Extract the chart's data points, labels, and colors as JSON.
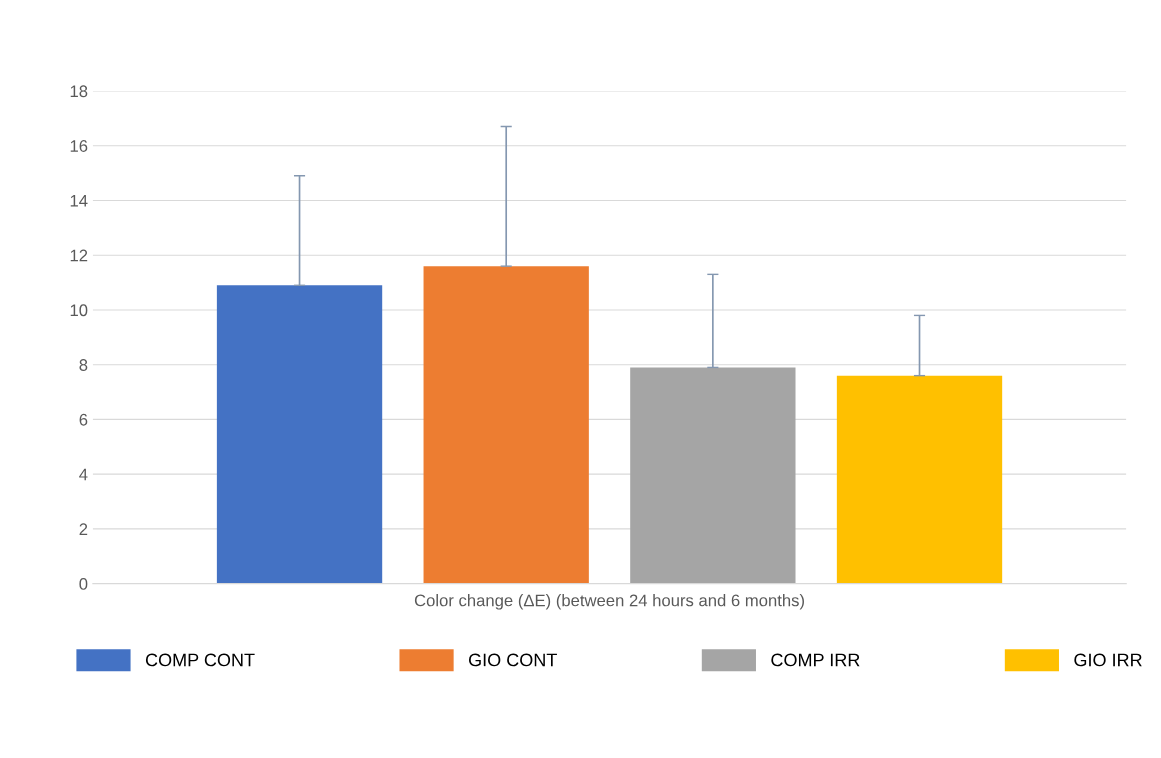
{
  "chart_data": {
    "type": "bar",
    "xlabel": "Color change (ΔE) (between 24 hours and 6 months)",
    "categories": [
      null
    ],
    "series": [
      {
        "name": "COMP CONT",
        "color": "#4472c4",
        "values": [
          10.9
        ],
        "errors": [
          [
            10.9,
            14.9
          ]
        ]
      },
      {
        "name": "GIO CONT",
        "color": "#ed7d31",
        "values": [
          11.6
        ],
        "errors": [
          [
            11.6,
            16.7
          ]
        ]
      },
      {
        "name": "COMP IRR",
        "color": "#a5a5a5",
        "values": [
          7.9
        ],
        "errors": [
          [
            7.9,
            11.3
          ]
        ]
      },
      {
        "name": "GIO IRR",
        "color": "#ffc000",
        "values": [
          7.6
        ],
        "errors": [
          [
            7.6,
            9.8
          ]
        ]
      }
    ],
    "ylim": [
      0,
      18
    ],
    "yticks": [
      0,
      2,
      4,
      6,
      8,
      10,
      12,
      14,
      16,
      18
    ],
    "grid": "y",
    "legend": "bottom"
  }
}
